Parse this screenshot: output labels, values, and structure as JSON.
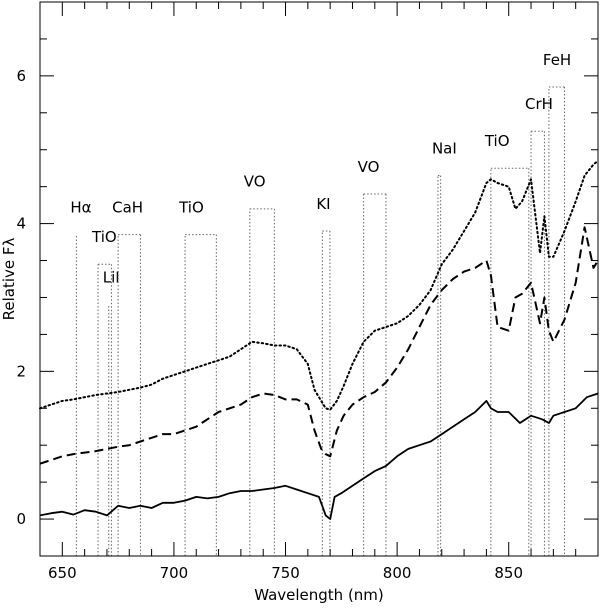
{
  "chart_data": {
    "type": "line",
    "title": "",
    "xlabel": "Wavelength (nm)",
    "ylabel": "Relative Fλ",
    "xlim": [
      640,
      890
    ],
    "ylim": [
      -0.5,
      7
    ],
    "x_ticks": [
      650,
      700,
      750,
      800,
      850
    ],
    "y_ticks": [
      0,
      2,
      4,
      6
    ],
    "grid": false,
    "legend": "none",
    "series": [
      {
        "style": "solid",
        "x": [
          640,
          645,
          650,
          655,
          660,
          665,
          670,
          675,
          680,
          685,
          690,
          695,
          700,
          705,
          710,
          715,
          720,
          725,
          730,
          735,
          740,
          745,
          750,
          755,
          760,
          765,
          768,
          770,
          772,
          775,
          780,
          785,
          790,
          795,
          800,
          805,
          810,
          815,
          820,
          825,
          830,
          835,
          840,
          842,
          845,
          850,
          855,
          860,
          865,
          868,
          870,
          875,
          880,
          885,
          890
        ],
        "y": [
          0.05,
          0.08,
          0.1,
          0.06,
          0.12,
          0.1,
          0.05,
          0.18,
          0.15,
          0.18,
          0.15,
          0.22,
          0.22,
          0.25,
          0.3,
          0.28,
          0.3,
          0.35,
          0.38,
          0.38,
          0.4,
          0.42,
          0.45,
          0.4,
          0.35,
          0.3,
          0.05,
          0.0,
          0.3,
          0.35,
          0.45,
          0.55,
          0.65,
          0.72,
          0.85,
          0.95,
          1.0,
          1.05,
          1.15,
          1.25,
          1.35,
          1.45,
          1.6,
          1.5,
          1.45,
          1.45,
          1.3,
          1.4,
          1.35,
          1.3,
          1.4,
          1.45,
          1.5,
          1.65,
          1.7
        ]
      },
      {
        "style": "dashed",
        "x": [
          640,
          645,
          650,
          655,
          660,
          665,
          670,
          675,
          680,
          685,
          690,
          695,
          700,
          705,
          710,
          715,
          720,
          725,
          730,
          735,
          740,
          745,
          750,
          755,
          760,
          763,
          766,
          768,
          770,
          773,
          776,
          780,
          785,
          790,
          795,
          800,
          805,
          810,
          815,
          820,
          825,
          830,
          835,
          840,
          842,
          845,
          850,
          853,
          856,
          860,
          864,
          866,
          868,
          870,
          875,
          880,
          884,
          888,
          890
        ],
        "y": [
          0.75,
          0.8,
          0.85,
          0.88,
          0.9,
          0.92,
          0.95,
          0.98,
          1.0,
          1.05,
          1.1,
          1.15,
          1.15,
          1.2,
          1.25,
          1.35,
          1.45,
          1.5,
          1.55,
          1.65,
          1.7,
          1.68,
          1.62,
          1.62,
          1.55,
          1.2,
          0.95,
          0.88,
          0.85,
          1.2,
          1.4,
          1.55,
          1.65,
          1.72,
          1.85,
          2.05,
          2.3,
          2.6,
          2.9,
          3.1,
          3.25,
          3.35,
          3.4,
          3.5,
          3.3,
          2.6,
          2.55,
          3.0,
          3.05,
          3.2,
          2.65,
          3.0,
          2.55,
          2.4,
          2.7,
          3.2,
          3.95,
          3.4,
          3.5
        ]
      },
      {
        "style": "dotted",
        "x": [
          640,
          645,
          650,
          655,
          660,
          665,
          670,
          675,
          680,
          685,
          690,
          695,
          700,
          705,
          710,
          715,
          720,
          725,
          730,
          735,
          740,
          745,
          750,
          755,
          760,
          763,
          766,
          768,
          770,
          773,
          776,
          780,
          785,
          790,
          795,
          800,
          805,
          810,
          815,
          820,
          825,
          830,
          835,
          840,
          842,
          845,
          850,
          853,
          856,
          860,
          864,
          866,
          868,
          870,
          875,
          880,
          884,
          888,
          890
        ],
        "y": [
          1.5,
          1.55,
          1.6,
          1.62,
          1.65,
          1.68,
          1.7,
          1.72,
          1.75,
          1.78,
          1.82,
          1.9,
          1.95,
          2.0,
          2.05,
          2.1,
          2.15,
          2.2,
          2.3,
          2.4,
          2.38,
          2.35,
          2.35,
          2.3,
          2.1,
          1.75,
          1.6,
          1.5,
          1.48,
          1.6,
          1.8,
          2.1,
          2.4,
          2.55,
          2.6,
          2.65,
          2.75,
          2.9,
          3.1,
          3.45,
          3.65,
          3.9,
          4.15,
          4.55,
          4.6,
          4.55,
          4.5,
          4.2,
          4.3,
          4.6,
          3.6,
          4.1,
          3.55,
          3.55,
          3.9,
          4.3,
          4.65,
          4.8,
          4.85
        ]
      }
    ],
    "features": [
      {
        "label": "Hα",
        "x": 656.3,
        "label_y": 4.15,
        "bar_end_x": 656.3
      },
      {
        "label": "TiO",
        "x": 666,
        "label_y": 3.75,
        "bar_end_x": 672
      },
      {
        "label": "LiI",
        "x": 670.8,
        "label_y": 3.2,
        "bar_end_x": 670.8
      },
      {
        "label": "CaH",
        "x": 675,
        "label_y": 4.15,
        "bar_end_x": 685
      },
      {
        "label": "TiO",
        "x": 705,
        "label_y": 4.15,
        "bar_end_x": 719
      },
      {
        "label": "VO",
        "x": 734,
        "label_y": 4.5,
        "bar_end_x": 745
      },
      {
        "label": "KI",
        "x": 766.5,
        "label_y": 4.2,
        "bar_end_x": 769.9
      },
      {
        "label": "VO",
        "x": 785,
        "label_y": 4.7,
        "bar_end_x": 795
      },
      {
        "label": "NaI",
        "x": 818.3,
        "label_y": 4.95,
        "bar_end_x": 819.5
      },
      {
        "label": "TiO",
        "x": 842,
        "label_y": 5.05,
        "bar_end_x": 859
      },
      {
        "label": "CrH",
        "x": 860,
        "label_y": 5.55,
        "bar_end_x": 866
      },
      {
        "label": "FeH",
        "x": 868,
        "label_y": 6.15,
        "bar_end_x": 875
      }
    ]
  }
}
